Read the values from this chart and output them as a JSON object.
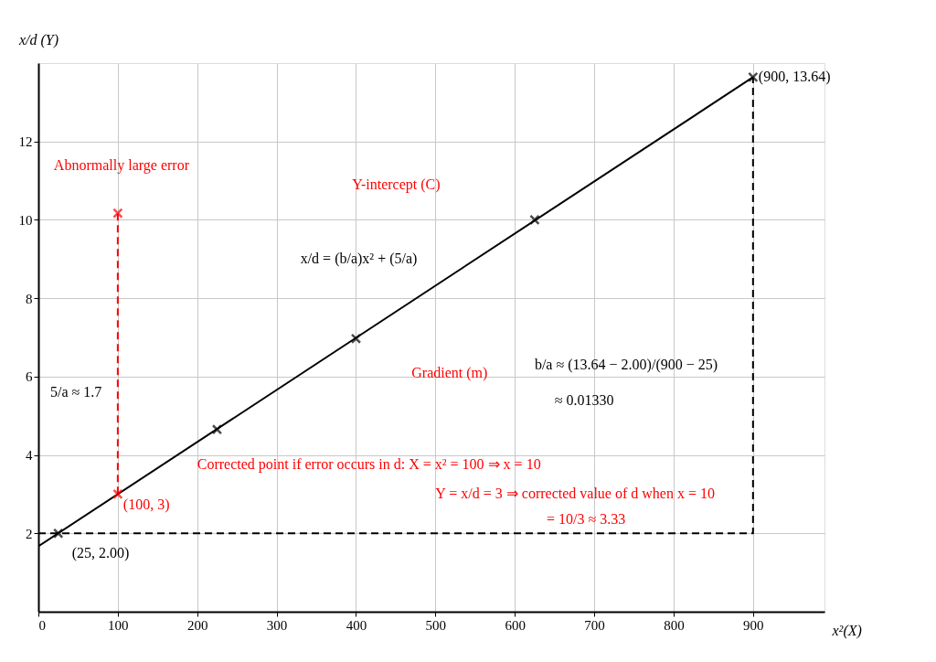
{
  "chart_data": {
    "type": "scatter",
    "xlabel": "x²(X)",
    "ylabel": "x/d (Y)",
    "xlim": [
      0,
      990
    ],
    "ylim": [
      0,
      14
    ],
    "xticks": [
      0,
      100,
      200,
      300,
      400,
      500,
      600,
      700,
      800,
      900
    ],
    "yticks": [
      2,
      4,
      6,
      8,
      10,
      12
    ],
    "grid": true,
    "series": [
      {
        "type": "line",
        "color": "#000000",
        "line_style": "dashed",
        "marker": "none",
        "x": [
          0,
          900,
          900
        ],
        "values": [
          2,
          2,
          13.64
        ]
      },
      {
        "type": "line",
        "color": "#ff0000",
        "line_style": "dashed",
        "marker": "none",
        "x": [
          100,
          100
        ],
        "values": [
          10.17,
          3
        ]
      },
      {
        "type": "line",
        "color": "#000000",
        "line_style": "solid",
        "marker": "none",
        "x": [
          0,
          900
        ],
        "values": [
          1.67,
          13.64
        ]
      },
      {
        "color": "#000000",
        "marker": "cross",
        "x": [
          25,
          225,
          400,
          625,
          900
        ],
        "values": [
          2.0,
          4.65,
          6.97,
          10.0,
          13.64
        ]
      },
      {
        "color": "#ff0000",
        "marker": "cross",
        "x": [
          100,
          100
        ],
        "values": [
          10.17,
          3
        ]
      }
    ],
    "annotations": [
      {
        "text": "(900, 13.64)",
        "x": 900,
        "y": 13.64
      },
      {
        "text": "(25, 2.00)",
        "x": 25,
        "y": 2.0
      },
      {
        "text": "(100, 3)",
        "x": 100,
        "y": 3
      },
      {
        "text": "Abnormally large error",
        "x": 100,
        "y": 10.17
      },
      "Y-intercept (C)",
      "x/d = (b/a)x² + (5/a)",
      "Gradient (m)",
      "b/a ≈ (13.64 − 2.00)/(900 − 25)",
      "≈ 0.01330",
      "5/a ≈ 1.7",
      "Corrected point if error occurs in d: X = x² = 100 ⇒ x = 10",
      "Y = x/d = 3 ⇒ corrected value of d when x = 10",
      "= 10/3 ≈ 3.33"
    ]
  }
}
